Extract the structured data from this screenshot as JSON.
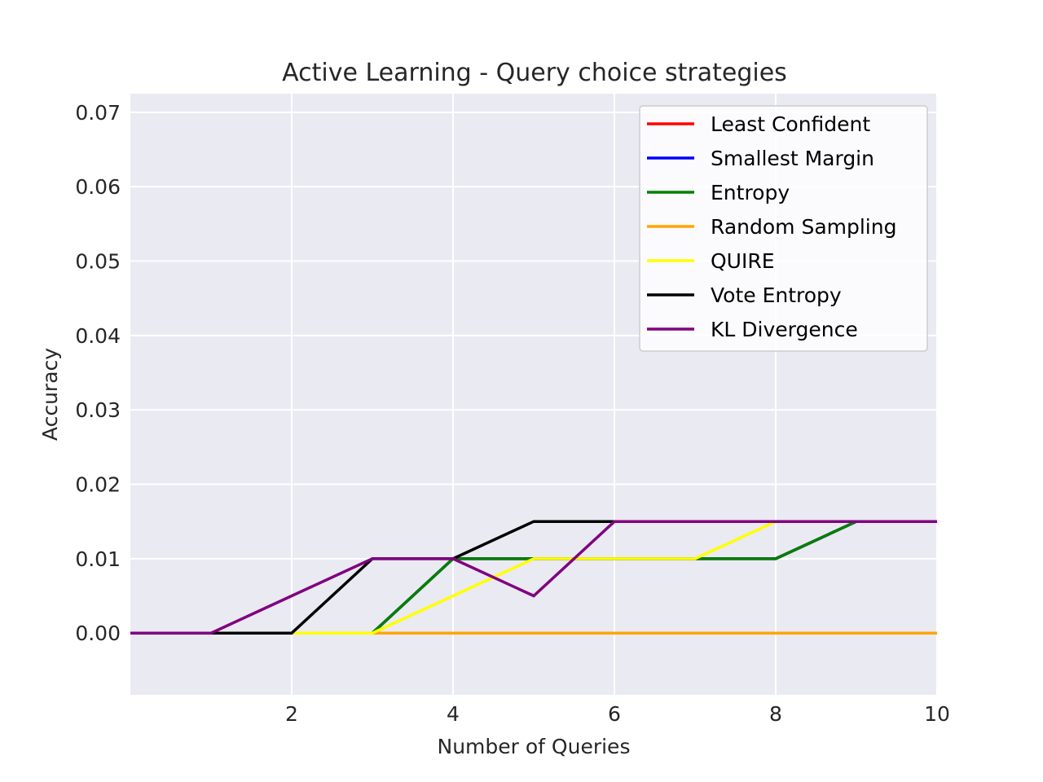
{
  "chart_data": {
    "type": "line",
    "title": "Active Learning - Query choice strategies",
    "xlabel": "Number of Queries",
    "ylabel": "Accuracy",
    "xlim": [
      0,
      10
    ],
    "ylim": [
      -0.0083,
      0.0725
    ],
    "xticks": [
      2,
      4,
      6,
      8,
      10
    ],
    "xtick_labels": [
      "2",
      "4",
      "6",
      "8",
      "10"
    ],
    "yticks": [
      0.0,
      0.01,
      0.02,
      0.03,
      0.04,
      0.05,
      0.06,
      0.07
    ],
    "ytick_labels": [
      "0.00",
      "0.01",
      "0.02",
      "0.03",
      "0.04",
      "0.05",
      "0.06",
      "0.07"
    ],
    "grid": true,
    "legend_position": "top-right",
    "x": [
      0,
      1,
      2,
      3,
      4,
      5,
      6,
      7,
      8,
      9,
      10
    ],
    "series": [
      {
        "name": "Least Confident",
        "color": "#ff0000",
        "values": [
          0,
          0,
          0,
          0,
          0.01,
          0.01,
          0.01,
          0.01,
          0.01,
          0.015,
          0.015
        ]
      },
      {
        "name": "Smallest Margin",
        "color": "#0000ff",
        "values": [
          0,
          0,
          0,
          0,
          0.01,
          0.01,
          0.01,
          0.01,
          0.01,
          0.015,
          0.015
        ]
      },
      {
        "name": "Entropy",
        "color": "#008000",
        "values": [
          0,
          0,
          0,
          0,
          0.01,
          0.01,
          0.01,
          0.01,
          0.01,
          0.015,
          0.015
        ]
      },
      {
        "name": "Random Sampling",
        "color": "#ffa500",
        "values": [
          0,
          0,
          0,
          0,
          0,
          0,
          0,
          0,
          0,
          0,
          0
        ]
      },
      {
        "name": "QUIRE",
        "color": "#ffff00",
        "values": [
          0,
          0,
          0,
          0,
          0.005,
          0.01,
          0.01,
          0.01,
          0.015,
          0.015,
          0.015
        ]
      },
      {
        "name": "Vote Entropy",
        "color": "#000000",
        "values": [
          0,
          0,
          0,
          0.01,
          0.01,
          0.015,
          0.015,
          0.015,
          0.015,
          0.015,
          0.015
        ]
      },
      {
        "name": "KL Divergence",
        "color": "#800080",
        "values": [
          0,
          0,
          0.005,
          0.01,
          0.01,
          0.005,
          0.015,
          0.015,
          0.015,
          0.015,
          0.015
        ]
      }
    ]
  }
}
